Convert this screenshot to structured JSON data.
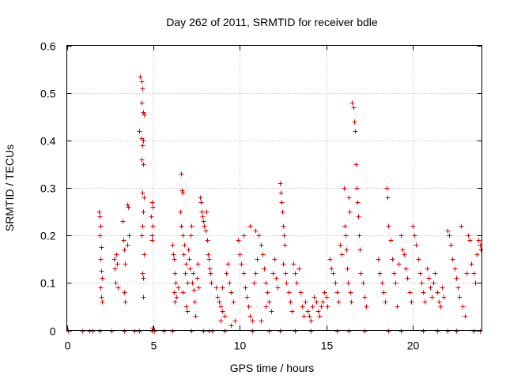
{
  "chart_data": {
    "type": "scatter",
    "title": "Day 262 of 2011, SRMTID for receiver bdle",
    "xlabel": "GPS time / hours",
    "ylabel": "SRMTID / TECUs",
    "xlim": [
      0,
      24
    ],
    "ylim": [
      0,
      0.6
    ],
    "x_ticks": [
      0,
      5,
      10,
      15,
      20
    ],
    "x_tick_labels": [
      "0",
      "5",
      "10",
      "15",
      "20"
    ],
    "y_ticks": [
      0,
      0.1,
      0.2,
      0.3,
      0.4,
      0.5,
      0.6
    ],
    "y_tick_labels": [
      "0",
      "0.1",
      "0.2",
      "0.3",
      "0.4",
      "0.5",
      "0.6"
    ],
    "grid": true,
    "marker": "+",
    "color": "#e00000",
    "series": [
      {
        "name": "SRMTID",
        "points": [
          [
            0.05,
            0
          ],
          [
            0.9,
            0
          ],
          [
            1.3,
            0
          ],
          [
            1.5,
            0
          ],
          [
            1.9,
            0
          ],
          [
            2.6,
            0
          ],
          [
            3.3,
            0
          ],
          [
            3.9,
            0
          ],
          [
            4.2,
            0
          ],
          [
            4.9,
            0
          ],
          [
            5.05,
            0
          ],
          [
            5.6,
            0
          ],
          [
            6.1,
            0
          ],
          [
            7.2,
            0
          ],
          [
            7.9,
            0
          ],
          [
            8.2,
            0
          ],
          [
            8.4,
            0
          ],
          [
            9.1,
            0
          ],
          [
            10.7,
            0
          ],
          [
            11.7,
            0
          ],
          [
            12.3,
            0
          ],
          [
            13.2,
            0
          ],
          [
            14.1,
            0
          ],
          [
            15.6,
            0
          ],
          [
            16.3,
            0
          ],
          [
            17.2,
            0
          ],
          [
            18.6,
            0
          ],
          [
            19.3,
            0
          ],
          [
            20.6,
            0
          ],
          [
            21.4,
            0
          ],
          [
            22.0,
            0
          ],
          [
            22.5,
            0
          ],
          [
            23.5,
            0
          ],
          [
            23.9,
            0
          ],
          [
            1.85,
            0.25
          ],
          [
            1.9,
            0.24
          ],
          [
            1.95,
            0.22
          ],
          [
            1.9,
            0.2
          ],
          [
            2.0,
            0.175
          ],
          [
            1.95,
            0.15
          ],
          [
            2.0,
            0.125
          ],
          [
            2.05,
            0.11
          ],
          [
            1.95,
            0.09
          ],
          [
            2.0,
            0.07
          ],
          [
            2.05,
            0.06
          ],
          [
            2.7,
            0.15
          ],
          [
            2.75,
            0.13
          ],
          [
            2.8,
            0.1
          ],
          [
            2.85,
            0.16
          ],
          [
            2.9,
            0.14
          ],
          [
            2.95,
            0.09
          ],
          [
            3.2,
            0.23
          ],
          [
            3.25,
            0.19
          ],
          [
            3.3,
            0.17
          ],
          [
            3.35,
            0.14
          ],
          [
            3.3,
            0.08
          ],
          [
            3.35,
            0.06
          ],
          [
            3.5,
            0.265
          ],
          [
            3.55,
            0.26
          ],
          [
            3.6,
            0.2
          ],
          [
            3.5,
            0.18
          ],
          [
            4.25,
            0.535
          ],
          [
            4.3,
            0.525
          ],
          [
            4.35,
            0.51
          ],
          [
            4.3,
            0.48
          ],
          [
            4.4,
            0.46
          ],
          [
            4.45,
            0.455
          ],
          [
            4.2,
            0.42
          ],
          [
            4.3,
            0.405
          ],
          [
            4.4,
            0.4
          ],
          [
            4.35,
            0.39
          ],
          [
            4.3,
            0.36
          ],
          [
            4.4,
            0.35
          ],
          [
            4.35,
            0.29
          ],
          [
            4.45,
            0.28
          ],
          [
            4.4,
            0.25
          ],
          [
            4.35,
            0.22
          ],
          [
            4.3,
            0.2
          ],
          [
            4.45,
            0.16
          ],
          [
            4.35,
            0.12
          ],
          [
            4.4,
            0.11
          ],
          [
            4.4,
            0.07
          ],
          [
            4.9,
            0.27
          ],
          [
            4.95,
            0.26
          ],
          [
            4.85,
            0.24
          ],
          [
            4.95,
            0.22
          ],
          [
            4.9,
            0.2
          ],
          [
            4.9,
            0.19
          ],
          [
            4.95,
            0.005
          ],
          [
            6.1,
            0.18
          ],
          [
            6.15,
            0.16
          ],
          [
            6.2,
            0.15
          ],
          [
            6.25,
            0.12
          ],
          [
            6.3,
            0.1
          ],
          [
            6.2,
            0.08
          ],
          [
            6.35,
            0.07
          ],
          [
            6.25,
            0.06
          ],
          [
            6.4,
            0.09
          ],
          [
            6.6,
            0.33
          ],
          [
            6.65,
            0.295
          ],
          [
            6.7,
            0.29
          ],
          [
            6.55,
            0.25
          ],
          [
            6.6,
            0.22
          ],
          [
            6.7,
            0.2
          ],
          [
            6.8,
            0.18
          ],
          [
            6.75,
            0.16
          ],
          [
            6.9,
            0.14
          ],
          [
            6.85,
            0.12
          ],
          [
            6.95,
            0.1
          ],
          [
            6.7,
            0.08
          ],
          [
            6.9,
            0.05
          ],
          [
            6.95,
            0.04
          ],
          [
            7.0,
            0.17
          ],
          [
            7.05,
            0.15
          ],
          [
            7.1,
            0.13
          ],
          [
            7.15,
            0.2
          ],
          [
            7.2,
            0.22
          ],
          [
            7.25,
            0.1
          ],
          [
            7.3,
            0.12
          ],
          [
            7.35,
            0.085
          ],
          [
            7.4,
            0.06
          ],
          [
            7.45,
            0.03
          ],
          [
            7.5,
            0.11
          ],
          [
            7.55,
            0.14
          ],
          [
            7.6,
            0.09
          ],
          [
            7.7,
            0.28
          ],
          [
            7.75,
            0.27
          ],
          [
            7.8,
            0.25
          ],
          [
            7.85,
            0.24
          ],
          [
            7.9,
            0.23
          ],
          [
            7.95,
            0.22
          ],
          [
            8.0,
            0.21
          ],
          [
            8.05,
            0.25
          ],
          [
            8.1,
            0.19
          ],
          [
            8.15,
            0.16
          ],
          [
            8.2,
            0.15
          ],
          [
            8.25,
            0.13
          ],
          [
            8.3,
            0.12
          ],
          [
            8.35,
            0.1
          ],
          [
            8.6,
            0.09
          ],
          [
            8.7,
            0.07
          ],
          [
            8.8,
            0.06
          ],
          [
            8.9,
            0.05
          ],
          [
            9.0,
            0.04
          ],
          [
            9.1,
            0.03
          ],
          [
            9.2,
            0.12
          ],
          [
            9.3,
            0.14
          ],
          [
            9.4,
            0.1
          ],
          [
            9.5,
            0.08
          ],
          [
            9.6,
            0.06
          ],
          [
            9.7,
            0.02
          ],
          [
            9.5,
            0.01
          ],
          [
            8.9,
            0.02
          ],
          [
            9.0,
            0.09
          ],
          [
            9.9,
            0.19
          ],
          [
            10.0,
            0.16
          ],
          [
            10.1,
            0.14
          ],
          [
            10.2,
            0.12
          ],
          [
            10.3,
            0.09
          ],
          [
            10.4,
            0.07
          ],
          [
            10.5,
            0.05
          ],
          [
            10.6,
            0.03
          ],
          [
            10.7,
            0.02
          ],
          [
            10.8,
            0.1
          ],
          [
            10.9,
            0.12
          ],
          [
            11.0,
            0.15
          ],
          [
            11.1,
            0.2
          ],
          [
            11.2,
            0.18
          ],
          [
            11.3,
            0.16
          ],
          [
            11.4,
            0.13
          ],
          [
            11.5,
            0.1
          ],
          [
            11.6,
            0.08
          ],
          [
            11.7,
            0.06
          ],
          [
            11.8,
            0.04
          ],
          [
            11.9,
            0.12
          ],
          [
            12.0,
            0.15
          ],
          [
            12.1,
            0.11
          ],
          [
            12.2,
            0.09
          ],
          [
            10.2,
            0.2
          ],
          [
            10.6,
            0.22
          ],
          [
            10.9,
            0.21
          ],
          [
            11.5,
            0.05
          ],
          [
            11.2,
            0.02
          ],
          [
            12.3,
            0.31
          ],
          [
            12.35,
            0.29
          ],
          [
            12.4,
            0.27
          ],
          [
            12.45,
            0.25
          ],
          [
            12.5,
            0.22
          ],
          [
            12.55,
            0.2
          ],
          [
            12.6,
            0.18
          ],
          [
            12.5,
            0.14
          ],
          [
            12.65,
            0.12
          ],
          [
            12.7,
            0.1
          ],
          [
            12.8,
            0.08
          ],
          [
            12.9,
            0.06
          ],
          [
            13.0,
            0.04
          ],
          [
            13.1,
            0.14
          ],
          [
            13.2,
            0.12
          ],
          [
            13.3,
            0.1
          ],
          [
            13.4,
            0.13
          ],
          [
            13.5,
            0.08
          ],
          [
            13.6,
            0.05
          ],
          [
            13.7,
            0.03
          ],
          [
            13.8,
            0.06
          ],
          [
            13.9,
            0.04
          ],
          [
            14.0,
            0.03
          ],
          [
            14.1,
            0.02
          ],
          [
            14.2,
            0.05
          ],
          [
            14.3,
            0.07
          ],
          [
            14.4,
            0.06
          ],
          [
            14.5,
            0.04
          ],
          [
            14.6,
            0.03
          ],
          [
            14.7,
            0.05
          ],
          [
            14.8,
            0.06
          ],
          [
            14.9,
            0.08
          ],
          [
            15.0,
            0.07
          ],
          [
            15.05,
            0.05
          ],
          [
            15.2,
            0.15
          ],
          [
            15.3,
            0.13
          ],
          [
            15.4,
            0.12
          ],
          [
            15.5,
            0.1
          ],
          [
            15.6,
            0.08
          ],
          [
            15.7,
            0.06
          ],
          [
            15.8,
            0.18
          ],
          [
            15.9,
            0.16
          ],
          [
            16.0,
            0.3
          ],
          [
            16.05,
            0.22
          ],
          [
            16.1,
            0.2
          ],
          [
            16.15,
            0.17
          ],
          [
            16.2,
            0.13
          ],
          [
            16.25,
            0.1
          ],
          [
            16.3,
            0.28
          ],
          [
            16.35,
            0.25
          ],
          [
            16.4,
            0.08
          ],
          [
            16.45,
            0.06
          ],
          [
            16.5,
            0.48
          ],
          [
            16.55,
            0.47
          ],
          [
            16.6,
            0.44
          ],
          [
            16.65,
            0.42
          ],
          [
            16.7,
            0.35
          ],
          [
            16.75,
            0.3
          ],
          [
            16.8,
            0.27
          ],
          [
            16.85,
            0.24
          ],
          [
            16.9,
            0.2
          ],
          [
            16.95,
            0.17
          ],
          [
            17.0,
            0.12
          ],
          [
            17.1,
            0.1
          ],
          [
            17.2,
            0.07
          ],
          [
            17.3,
            0.05
          ],
          [
            18.0,
            0.15
          ],
          [
            18.1,
            0.12
          ],
          [
            18.2,
            0.1
          ],
          [
            18.3,
            0.08
          ],
          [
            18.4,
            0.06
          ],
          [
            18.5,
            0.3
          ],
          [
            18.55,
            0.28
          ],
          [
            18.6,
            0.22
          ],
          [
            18.7,
            0.19
          ],
          [
            18.8,
            0.15
          ],
          [
            18.9,
            0.12
          ],
          [
            19.0,
            0.1
          ],
          [
            19.1,
            0.05
          ],
          [
            19.2,
            0.14
          ],
          [
            19.3,
            0.2
          ],
          [
            19.4,
            0.17
          ],
          [
            19.5,
            0.16
          ],
          [
            19.6,
            0.13
          ],
          [
            19.7,
            0.11
          ],
          [
            19.8,
            0.08
          ],
          [
            19.9,
            0.06
          ],
          [
            20.0,
            0.22
          ],
          [
            20.1,
            0.2
          ],
          [
            20.2,
            0.18
          ],
          [
            20.3,
            0.15
          ],
          [
            20.4,
            0.12
          ],
          [
            20.5,
            0.1
          ],
          [
            20.6,
            0.08
          ],
          [
            20.7,
            0.06
          ],
          [
            20.8,
            0.13
          ],
          [
            20.9,
            0.11
          ],
          [
            21.0,
            0.09
          ],
          [
            21.1,
            0.07
          ],
          [
            21.2,
            0.1
          ],
          [
            21.3,
            0.12
          ],
          [
            21.4,
            0.08
          ],
          [
            21.5,
            0.06
          ],
          [
            21.6,
            0.05
          ],
          [
            21.7,
            0.09
          ],
          [
            21.8,
            0.07
          ],
          [
            22.0,
            0.21
          ],
          [
            22.1,
            0.2
          ],
          [
            22.2,
            0.18
          ],
          [
            22.3,
            0.15
          ],
          [
            22.4,
            0.13
          ],
          [
            22.5,
            0.11
          ],
          [
            22.6,
            0.09
          ],
          [
            22.7,
            0.07
          ],
          [
            22.8,
            0.22
          ],
          [
            22.9,
            0.05
          ],
          [
            23.0,
            0.03
          ],
          [
            23.1,
            0.12
          ],
          [
            23.2,
            0.2
          ],
          [
            23.3,
            0.19
          ],
          [
            23.4,
            0.14
          ],
          [
            23.5,
            0.12
          ],
          [
            23.6,
            0.1
          ],
          [
            23.7,
            0.16
          ],
          [
            23.8,
            0.19
          ],
          [
            23.9,
            0.18
          ],
          [
            23.95,
            0.17
          ]
        ]
      }
    ]
  }
}
